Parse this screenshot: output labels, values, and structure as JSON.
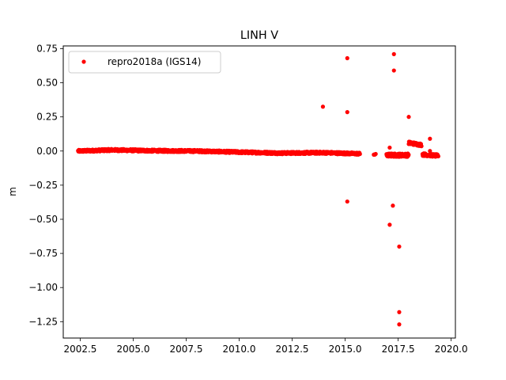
{
  "chart_data": {
    "type": "scatter",
    "title": "LINH V",
    "xlabel": "",
    "ylabel": "m",
    "xlim": [
      2001.7,
      2020.2
    ],
    "ylim": [
      -1.37,
      0.77
    ],
    "xticks": [
      2002.5,
      2005.0,
      2007.5,
      2010.0,
      2012.5,
      2015.0,
      2017.5,
      2020.0
    ],
    "xtick_labels": [
      "2002.5",
      "2005.0",
      "2007.5",
      "2010.0",
      "2012.5",
      "2015.0",
      "2017.5",
      "2020.0"
    ],
    "yticks": [
      0.75,
      0.5,
      0.25,
      0.0,
      -0.25,
      -0.5,
      -0.75,
      -1.0,
      -1.25
    ],
    "ytick_labels": [
      "0.75",
      "0.50",
      "0.25",
      "0.00",
      "−0.25",
      "−0.50",
      "−0.75",
      "−1.00",
      "−1.25"
    ],
    "grid": false,
    "legend": {
      "placement": "top-left"
    },
    "series": [
      {
        "name": "repro2018a (IGS14)",
        "color": "#ff0000",
        "marker": "circle",
        "segments": [
          {
            "x_start": 2002.4,
            "x_end": 2015.7,
            "step": 0.012,
            "baseline": [
              [
                2002.4,
                0.0
              ],
              [
                2004.0,
                0.008
              ],
              [
                2006.0,
                0.002
              ],
              [
                2008.0,
                0.0
              ],
              [
                2010.0,
                -0.008
              ],
              [
                2012.0,
                -0.015
              ],
              [
                2014.0,
                -0.012
              ],
              [
                2015.7,
                -0.02
              ]
            ],
            "noise": 0.008
          },
          {
            "x_start": 16.35,
            "x_end": 16.45,
            "step": 0.03,
            "baseline": [
              [
                16.35,
                -0.025
              ],
              [
                16.45,
                -0.025
              ]
            ],
            "noise": 0.004,
            "offset": 2000
          },
          {
            "x_start": 2016.95,
            "x_end": 2018.0,
            "step": 0.012,
            "baseline": [
              [
                2016.95,
                -0.03
              ],
              [
                2018.0,
                -0.03
              ]
            ],
            "noise": 0.012
          },
          {
            "x_start": 2018.0,
            "x_end": 2018.6,
            "step": 0.012,
            "baseline": [
              [
                2018.0,
                0.06
              ],
              [
                2018.6,
                0.045
              ]
            ],
            "noise": 0.01
          },
          {
            "x_start": 2018.65,
            "x_end": 2019.4,
            "step": 0.012,
            "baseline": [
              [
                2018.65,
                -0.025
              ],
              [
                2019.4,
                -0.035
              ]
            ],
            "noise": 0.01
          }
        ],
        "outliers": [
          [
            2013.95,
            0.325
          ],
          [
            2015.1,
            0.68
          ],
          [
            2015.1,
            0.285
          ],
          [
            2015.1,
            -0.37
          ],
          [
            2017.3,
            0.71
          ],
          [
            2017.3,
            0.59
          ],
          [
            2017.25,
            -0.4
          ],
          [
            2017.1,
            -0.54
          ],
          [
            2017.1,
            0.025
          ],
          [
            2017.55,
            -0.7
          ],
          [
            2017.55,
            -1.18
          ],
          [
            2017.55,
            -1.27
          ],
          [
            2018.0,
            0.25
          ],
          [
            2019.0,
            0.09
          ],
          [
            2019.0,
            0.0
          ],
          [
            2016.4,
            -0.025
          ]
        ]
      }
    ]
  }
}
